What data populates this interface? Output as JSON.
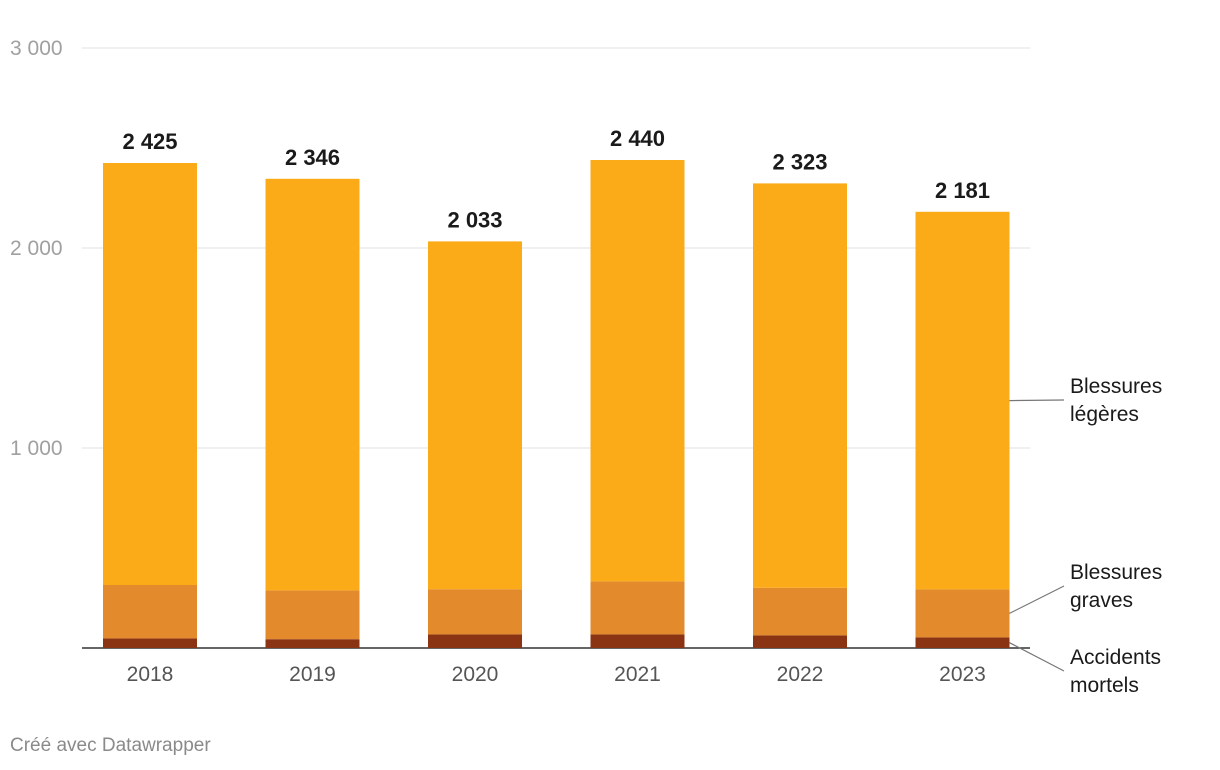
{
  "chart_data": {
    "type": "bar",
    "stacked": true,
    "categories": [
      "2018",
      "2019",
      "2020",
      "2021",
      "2022",
      "2023"
    ],
    "series": [
      {
        "name": "Accidents mortels",
        "color": "#8b3414",
        "values": [
          48,
          44,
          68,
          68,
          63,
          53
        ]
      },
      {
        "name": "Blessures graves",
        "color": "#e38b2c",
        "values": [
          267,
          244,
          226,
          265,
          238,
          240
        ]
      },
      {
        "name": "Blessures légères",
        "color": "#fbab18",
        "values": [
          2110,
          2058,
          1739,
          2107,
          2022,
          1888
        ]
      }
    ],
    "totals": [
      2425,
      2346,
      2033,
      2440,
      2323,
      2181
    ],
    "total_labels": [
      "2 425",
      "2 346",
      "2 033",
      "2 440",
      "2 323",
      "2 181"
    ],
    "legend_labels": {
      "Blessures légères": [
        "Blessures",
        "légères"
      ],
      "Blessures graves": [
        "Blessures",
        "graves"
      ],
      "Accidents mortels": [
        "Accidents",
        "mortels"
      ]
    },
    "yticks": [
      1000,
      2000,
      3000
    ],
    "ytick_labels": [
      "1 000",
      "2 000",
      "3 000"
    ],
    "ylim": [
      0,
      3000
    ],
    "grid": true,
    "legend_position": "right",
    "title": "",
    "xlabel": "",
    "ylabel": ""
  },
  "footer": {
    "credit": "Créé avec Datawrapper"
  }
}
